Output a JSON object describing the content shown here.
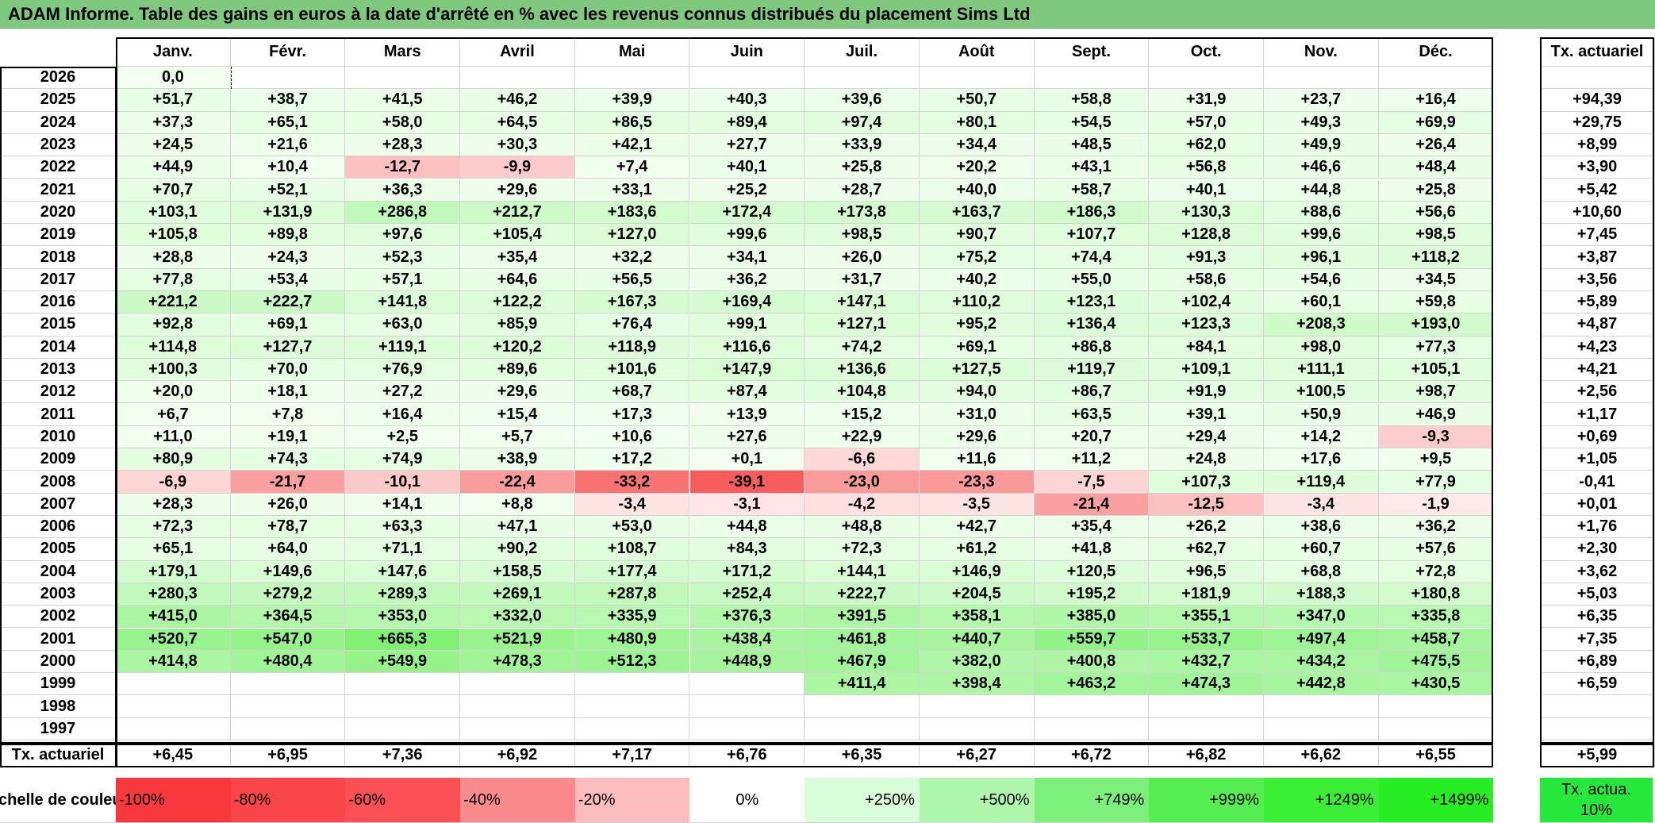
{
  "title": "ADAM Informe. Table des gains en euros à la date d'arrêté en % avec les revenus connus distribués du placement Sims Ltd",
  "chart_data": {
    "type": "heatmap",
    "title": "ADAM Informe. Table des gains en euros à la date d'arrêté en % avec les revenus connus distribués du placement Sims Ltd",
    "columns": [
      "Janv.",
      "Févr.",
      "Mars",
      "Avril",
      "Mai",
      "Juin",
      "Juil.",
      "Août",
      "Sept.",
      "Oct.",
      "Nov.",
      "Déc."
    ],
    "rate_column_label": "Tx. actuariel",
    "rows": [
      {
        "year": "2026",
        "values": [
          "0,0",
          "",
          "",
          "",
          "",
          "",
          "",
          "",
          "",
          "",
          "",
          ""
        ],
        "rate": ""
      },
      {
        "year": "2025",
        "values": [
          "+51,7",
          "+38,7",
          "+41,5",
          "+46,2",
          "+39,9",
          "+40,3",
          "+39,6",
          "+50,7",
          "+58,8",
          "+31,9",
          "+23,7",
          "+16,4"
        ],
        "rate": "+94,39"
      },
      {
        "year": "2024",
        "values": [
          "+37,3",
          "+65,1",
          "+58,0",
          "+64,5",
          "+86,5",
          "+89,4",
          "+97,4",
          "+80,1",
          "+54,5",
          "+57,0",
          "+49,3",
          "+69,9"
        ],
        "rate": "+29,75"
      },
      {
        "year": "2023",
        "values": [
          "+24,5",
          "+21,6",
          "+28,3",
          "+30,3",
          "+42,1",
          "+27,7",
          "+33,9",
          "+34,4",
          "+48,5",
          "+62,0",
          "+49,9",
          "+26,4"
        ],
        "rate": "+8,99"
      },
      {
        "year": "2022",
        "values": [
          "+44,9",
          "+10,4",
          "-12,7",
          "-9,9",
          "+7,4",
          "+40,1",
          "+25,8",
          "+20,2",
          "+43,1",
          "+56,8",
          "+46,6",
          "+48,4"
        ],
        "rate": "+3,90"
      },
      {
        "year": "2021",
        "values": [
          "+70,7",
          "+52,1",
          "+36,3",
          "+29,6",
          "+33,1",
          "+25,2",
          "+28,7",
          "+40,0",
          "+58,7",
          "+40,1",
          "+44,8",
          "+25,8"
        ],
        "rate": "+5,42"
      },
      {
        "year": "2020",
        "values": [
          "+103,1",
          "+131,9",
          "+286,8",
          "+212,7",
          "+183,6",
          "+172,4",
          "+173,8",
          "+163,7",
          "+186,3",
          "+130,3",
          "+88,6",
          "+56,6"
        ],
        "rate": "+10,60"
      },
      {
        "year": "2019",
        "values": [
          "+105,8",
          "+89,8",
          "+97,6",
          "+105,4",
          "+127,0",
          "+99,6",
          "+98,5",
          "+90,7",
          "+107,7",
          "+128,8",
          "+99,6",
          "+98,5"
        ],
        "rate": "+7,45"
      },
      {
        "year": "2018",
        "values": [
          "+28,8",
          "+24,3",
          "+52,3",
          "+35,4",
          "+32,2",
          "+34,1",
          "+26,0",
          "+75,2",
          "+74,4",
          "+91,3",
          "+96,1",
          "+118,2"
        ],
        "rate": "+3,87"
      },
      {
        "year": "2017",
        "values": [
          "+77,8",
          "+53,4",
          "+57,1",
          "+64,6",
          "+56,5",
          "+36,2",
          "+31,7",
          "+40,2",
          "+55,0",
          "+58,6",
          "+54,6",
          "+34,5"
        ],
        "rate": "+3,56"
      },
      {
        "year": "2016",
        "values": [
          "+221,2",
          "+222,7",
          "+141,8",
          "+122,2",
          "+167,3",
          "+169,4",
          "+147,1",
          "+110,2",
          "+123,1",
          "+102,4",
          "+60,1",
          "+59,8"
        ],
        "rate": "+5,89"
      },
      {
        "year": "2015",
        "values": [
          "+92,8",
          "+69,1",
          "+63,0",
          "+85,9",
          "+76,4",
          "+99,1",
          "+127,1",
          "+95,2",
          "+136,4",
          "+123,3",
          "+208,3",
          "+193,0"
        ],
        "rate": "+4,87"
      },
      {
        "year": "2014",
        "values": [
          "+114,8",
          "+127,7",
          "+119,1",
          "+120,2",
          "+118,9",
          "+116,6",
          "+74,2",
          "+69,1",
          "+86,8",
          "+84,1",
          "+98,0",
          "+77,3"
        ],
        "rate": "+4,23"
      },
      {
        "year": "2013",
        "values": [
          "+100,3",
          "+70,0",
          "+76,9",
          "+89,6",
          "+101,6",
          "+147,9",
          "+136,6",
          "+127,5",
          "+119,7",
          "+109,1",
          "+111,1",
          "+105,1"
        ],
        "rate": "+4,21"
      },
      {
        "year": "2012",
        "values": [
          "+20,0",
          "+18,1",
          "+27,2",
          "+29,6",
          "+68,7",
          "+87,4",
          "+104,8",
          "+94,0",
          "+86,7",
          "+91,9",
          "+100,5",
          "+98,7"
        ],
        "rate": "+2,56"
      },
      {
        "year": "2011",
        "values": [
          "+6,7",
          "+7,8",
          "+16,4",
          "+15,4",
          "+17,3",
          "+13,9",
          "+15,2",
          "+31,0",
          "+63,5",
          "+39,1",
          "+50,9",
          "+46,9"
        ],
        "rate": "+1,17"
      },
      {
        "year": "2010",
        "values": [
          "+11,0",
          "+19,1",
          "+2,5",
          "+5,7",
          "+10,6",
          "+27,6",
          "+22,9",
          "+29,6",
          "+20,7",
          "+29,4",
          "+14,2",
          "-9,3"
        ],
        "rate": "+0,69"
      },
      {
        "year": "2009",
        "values": [
          "+80,9",
          "+74,3",
          "+74,9",
          "+38,9",
          "+17,2",
          "+0,1",
          "-6,6",
          "+11,6",
          "+11,2",
          "+24,8",
          "+17,6",
          "+9,5"
        ],
        "rate": "+1,05"
      },
      {
        "year": "2008",
        "values": [
          "-6,9",
          "-21,7",
          "-10,1",
          "-22,4",
          "-33,2",
          "-39,1",
          "-23,0",
          "-23,3",
          "-7,5",
          "+107,3",
          "+119,4",
          "+77,9"
        ],
        "rate": "-0,41"
      },
      {
        "year": "2007",
        "values": [
          "+28,3",
          "+26,0",
          "+14,1",
          "+8,8",
          "-3,4",
          "-3,1",
          "-4,2",
          "-3,5",
          "-21,4",
          "-12,5",
          "-3,4",
          "-1,9"
        ],
        "rate": "+0,01"
      },
      {
        "year": "2006",
        "values": [
          "+72,3",
          "+78,7",
          "+63,3",
          "+47,1",
          "+53,0",
          "+44,8",
          "+48,8",
          "+42,7",
          "+35,4",
          "+26,2",
          "+38,6",
          "+36,2"
        ],
        "rate": "+1,76"
      },
      {
        "year": "2005",
        "values": [
          "+65,1",
          "+64,0",
          "+71,1",
          "+90,2",
          "+108,7",
          "+84,3",
          "+72,3",
          "+61,2",
          "+41,8",
          "+62,7",
          "+60,7",
          "+57,6"
        ],
        "rate": "+2,30"
      },
      {
        "year": "2004",
        "values": [
          "+179,1",
          "+149,6",
          "+147,6",
          "+158,5",
          "+177,4",
          "+171,2",
          "+144,1",
          "+146,9",
          "+120,5",
          "+96,5",
          "+68,8",
          "+72,8"
        ],
        "rate": "+3,62"
      },
      {
        "year": "2003",
        "values": [
          "+280,3",
          "+279,2",
          "+289,3",
          "+269,1",
          "+287,8",
          "+252,4",
          "+222,7",
          "+204,5",
          "+195,2",
          "+181,9",
          "+188,3",
          "+180,8"
        ],
        "rate": "+5,03"
      },
      {
        "year": "2002",
        "values": [
          "+415,0",
          "+364,5",
          "+353,0",
          "+332,0",
          "+335,9",
          "+376,3",
          "+391,5",
          "+358,1",
          "+385,0",
          "+355,1",
          "+347,0",
          "+335,8"
        ],
        "rate": "+6,35"
      },
      {
        "year": "2001",
        "values": [
          "+520,7",
          "+547,0",
          "+665,3",
          "+521,9",
          "+480,9",
          "+438,4",
          "+461,8",
          "+440,7",
          "+559,7",
          "+533,7",
          "+497,4",
          "+458,7"
        ],
        "rate": "+7,35"
      },
      {
        "year": "2000",
        "values": [
          "+414,8",
          "+480,4",
          "+549,9",
          "+478,3",
          "+512,3",
          "+448,9",
          "+467,9",
          "+382,0",
          "+400,8",
          "+432,7",
          "+434,2",
          "+475,5"
        ],
        "rate": "+6,89"
      },
      {
        "year": "1999",
        "values": [
          "",
          "",
          "",
          "",
          "",
          "",
          "+411,4",
          "+398,4",
          "+463,2",
          "+474,3",
          "+442,8",
          "+430,5"
        ],
        "rate": "+6,59"
      },
      {
        "year": "1998",
        "values": [
          "",
          "",
          "",
          "",
          "",
          "",
          "",
          "",
          "",
          "",
          "",
          ""
        ],
        "rate": ""
      },
      {
        "year": "1997",
        "values": [
          "",
          "",
          "",
          "",
          "",
          "",
          "",
          "",
          "",
          "",
          "",
          ""
        ],
        "rate": ""
      }
    ],
    "summary_row": {
      "label": "Tx. actuariel",
      "values": [
        "+6,45",
        "+6,95",
        "+7,36",
        "+6,92",
        "+7,17",
        "+6,76",
        "+6,35",
        "+6,27",
        "+6,72",
        "+6,82",
        "+6,62",
        "+6,55"
      ],
      "rate": "+5,99"
    },
    "color_scale": {
      "label": "Echelle de couleur",
      "items": [
        {
          "text": "-100%",
          "color": "#f8383d"
        },
        {
          "text": "-80%",
          "color": "#f94449"
        },
        {
          "text": "-60%",
          "color": "#fa5055"
        },
        {
          "text": "-40%",
          "color": "#fb8a8d"
        },
        {
          "text": "-20%",
          "color": "#fcbcbe"
        },
        {
          "text": "0%",
          "color": "#ffffff"
        },
        {
          "text": "+250%",
          "color": "#d9fcd9"
        },
        {
          "text": "+500%",
          "color": "#b0f7ae"
        },
        {
          "text": "+749%",
          "color": "#7cf07a"
        },
        {
          "text": "+999%",
          "color": "#55ee52"
        },
        {
          "text": "+1249%",
          "color": "#3aee36"
        },
        {
          "text": "+1499%",
          "color": "#27ee22"
        }
      ],
      "rate_legend": {
        "text": "Tx. actua. 10%",
        "color": "#26e83a"
      }
    }
  }
}
